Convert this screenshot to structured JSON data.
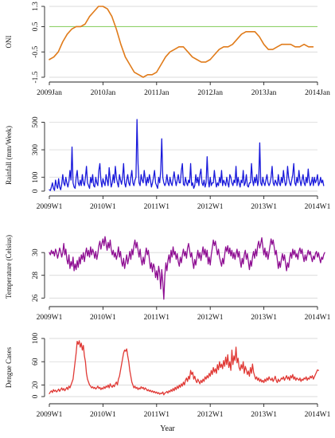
{
  "xlabel": "Year",
  "chart_data": [
    {
      "type": "line",
      "ylabel": "ONI",
      "color": "#e07b1a",
      "ref_line": {
        "value": 0.5,
        "color": "#8fd16a"
      },
      "ylim": [
        -1.5,
        1.3
      ],
      "yticks": [
        "1.3",
        "0.5",
        "-0.5",
        "-1.5"
      ],
      "ytick_values": [
        1.3,
        0.5,
        -0.5,
        -1.5
      ],
      "xlim": [
        0,
        60
      ],
      "xticks": [
        "2009Jan",
        "2010Jan",
        "2011Jan",
        "2012Jan",
        "2013Jan",
        "2014Jan"
      ],
      "xtick_positions": [
        0,
        12,
        24,
        36,
        48,
        60
      ],
      "grid": true,
      "x": [
        0,
        1,
        2,
        3,
        4,
        5,
        6,
        7,
        8,
        9,
        10,
        11,
        12,
        13,
        14,
        15,
        16,
        17,
        18,
        19,
        20,
        21,
        22,
        23,
        24,
        25,
        26,
        27,
        28,
        29,
        30,
        31,
        32,
        33,
        34,
        35,
        36,
        37,
        38,
        39,
        40,
        41,
        42,
        43,
        44,
        45,
        46,
        47,
        48,
        49,
        50,
        51,
        52,
        53,
        54,
        55,
        56,
        57,
        58,
        59
      ],
      "values": [
        -0.8,
        -0.7,
        -0.5,
        -0.1,
        0.2,
        0.4,
        0.5,
        0.5,
        0.6,
        0.9,
        1.1,
        1.3,
        1.3,
        1.2,
        0.9,
        0.4,
        -0.2,
        -0.7,
        -1.0,
        -1.3,
        -1.4,
        -1.5,
        -1.4,
        -1.4,
        -1.3,
        -1.0,
        -0.7,
        -0.5,
        -0.4,
        -0.3,
        -0.3,
        -0.5,
        -0.7,
        -0.8,
        -0.9,
        -0.9,
        -0.8,
        -0.6,
        -0.4,
        -0.3,
        -0.3,
        -0.2,
        0.0,
        0.2,
        0.3,
        0.3,
        0.3,
        0.1,
        -0.2,
        -0.4,
        -0.4,
        -0.3,
        -0.2,
        -0.2,
        -0.2,
        -0.3,
        -0.3,
        -0.2,
        -0.3,
        -0.3
      ]
    },
    {
      "type": "line",
      "ylabel": "Rainfall (mm/Week)",
      "color": "#1a1adb",
      "ylim": [
        0,
        520
      ],
      "yticks": [
        "0",
        "100",
        "300",
        "500"
      ],
      "ytick_values": [
        0,
        100,
        300,
        500
      ],
      "xlim": [
        0,
        260
      ],
      "xticks": [
        "2009W1",
        "2010W1",
        "2011W1",
        "2012W1",
        "2013W1",
        "2014W1"
      ],
      "xtick_positions": [
        0,
        52,
        104,
        156,
        208,
        260
      ],
      "grid": true,
      "values": [
        10,
        5,
        30,
        60,
        20,
        5,
        80,
        40,
        20,
        90,
        30,
        10,
        50,
        120,
        60,
        40,
        100,
        60,
        30,
        70,
        150,
        80,
        320,
        60,
        30,
        20,
        100,
        150,
        60,
        40,
        80,
        40,
        120,
        60,
        40,
        100,
        180,
        60,
        40,
        20,
        100,
        60,
        120,
        40,
        30,
        100,
        60,
        40,
        150,
        200,
        80,
        30,
        90,
        60,
        40,
        120,
        80,
        40,
        170,
        90,
        30,
        60,
        120,
        60,
        180,
        100,
        60,
        30,
        120,
        80,
        50,
        100,
        200,
        60,
        30,
        80,
        120,
        60,
        40,
        100,
        150,
        60,
        40,
        80,
        100,
        520,
        200,
        60,
        40,
        120,
        80,
        60,
        150,
        90,
        40,
        100,
        60,
        120,
        80,
        30,
        60,
        100,
        150,
        60,
        40,
        20,
        100,
        60,
        150,
        380,
        100,
        60,
        40,
        60,
        120,
        60,
        40,
        100,
        60,
        40,
        90,
        140,
        80,
        40,
        80,
        120,
        60,
        60,
        150,
        200,
        50,
        40,
        100,
        60,
        40,
        80,
        60,
        200,
        40,
        60,
        20,
        40,
        120,
        60,
        100,
        40,
        120,
        160,
        60,
        40,
        80,
        30,
        60,
        250,
        80,
        30,
        100,
        40,
        60,
        60,
        150,
        80,
        30,
        60,
        40,
        100,
        60,
        150,
        40,
        80,
        60,
        40,
        100,
        60,
        30,
        120,
        100,
        60,
        40,
        80,
        60,
        180,
        40,
        100,
        60,
        30,
        80,
        60,
        150,
        40,
        60,
        120,
        40,
        30,
        60,
        60,
        200,
        80,
        40,
        100,
        60,
        120,
        40,
        80,
        350,
        60,
        40,
        100,
        60,
        40,
        80,
        120,
        60,
        40,
        60,
        100,
        180,
        60,
        40,
        80,
        60,
        40,
        120,
        60,
        40,
        100,
        60,
        150,
        80,
        40,
        60,
        180,
        100,
        60,
        40,
        80,
        120,
        200,
        60,
        40,
        100,
        60,
        150,
        80,
        40,
        80,
        120,
        60,
        40,
        100,
        60,
        160,
        80,
        40,
        60,
        100,
        40,
        100,
        60,
        80,
        120,
        40,
        60,
        100,
        60,
        80,
        40
      ]
    },
    {
      "type": "line",
      "ylabel": "Temperature (Celsius)",
      "color": "#8e0e92",
      "ylim": [
        25.6,
        31.9
      ],
      "yticks": [
        "26",
        "28",
        "30"
      ],
      "ytick_values": [
        26,
        28,
        30
      ],
      "xlim": [
        0,
        260
      ],
      "xticks": [
        "2009W1",
        "2010W1",
        "2011W1",
        "2012W1",
        "2013W1",
        "2014W1"
      ],
      "xtick_positions": [
        0,
        52,
        104,
        156,
        208,
        260
      ],
      "grid": true,
      "values": [
        30.0,
        29.8,
        30.2,
        29.9,
        30.1,
        29.7,
        30.3,
        30.0,
        29.5,
        29.9,
        30.4,
        30.1,
        29.6,
        30.0,
        30.8,
        29.8,
        30.3,
        29.4,
        29.0,
        29.8,
        28.6,
        29.2,
        28.8,
        29.6,
        28.4,
        29.0,
        28.5,
        29.3,
        28.7,
        29.6,
        29.0,
        29.8,
        29.4,
        30.0,
        29.2,
        29.9,
        30.4,
        29.7,
        30.2,
        29.6,
        30.5,
        29.8,
        30.3,
        30.0,
        29.5,
        30.1,
        29.4,
        29.9,
        30.6,
        31.0,
        30.3,
        30.8,
        31.2,
        30.6,
        31.4,
        30.8,
        30.2,
        30.9,
        30.4,
        31.1,
        30.3,
        29.8,
        30.2,
        29.6,
        30.0,
        29.4,
        29.8,
        30.5,
        29.6,
        30.1,
        29.2,
        28.8,
        29.5,
        28.6,
        29.2,
        29.8,
        29.0,
        29.5,
        30.1,
        29.4,
        30.3,
        29.8,
        30.6,
        31.1,
        30.4,
        30.9,
        30.2,
        29.6,
        30.3,
        29.4,
        28.9,
        29.6,
        29.0,
        29.8,
        30.4,
        29.8,
        30.2,
        29.4,
        28.6,
        29.1,
        28.3,
        29.0,
        28.7,
        27.8,
        28.4,
        27.6,
        28.8,
        28.2,
        26.8,
        28.5,
        27.4,
        25.9,
        28.0,
        29.1,
        28.4,
        29.3,
        29.8,
        29.1,
        30.2,
        29.6,
        30.5,
        29.8,
        30.1,
        29.4,
        29.9,
        29.2,
        28.8,
        29.6,
        29.1,
        29.8,
        30.3,
        29.7,
        30.1,
        29.5,
        30.4,
        30.8,
        30.2,
        29.6,
        30.0,
        29.2,
        28.6,
        29.4,
        28.9,
        29.6,
        30.2,
        29.5,
        30.0,
        29.3,
        29.9,
        30.5,
        29.8,
        30.3,
        29.6,
        30.2,
        29.0,
        29.6,
        28.9,
        29.8,
        30.4,
        31.1,
        30.6,
        31.0,
        30.4,
        29.8,
        30.3,
        29.6,
        29.2,
        28.8,
        29.5,
        29.0,
        29.8,
        30.5,
        30.1,
        30.6,
        29.9,
        30.4,
        29.7,
        30.2,
        29.5,
        30.0,
        29.4,
        29.9,
        30.3,
        29.6,
        30.1,
        29.3,
        28.7,
        29.5,
        29.0,
        29.8,
        30.2,
        29.4,
        29.9,
        29.2,
        28.5,
        29.3,
        28.8,
        29.6,
        30.1,
        29.5,
        30.3,
        29.7,
        30.6,
        31.0,
        30.4,
        30.8,
        31.3,
        30.5,
        29.8,
        30.4,
        29.6,
        30.1,
        29.4,
        30.0,
        30.6,
        31.2,
        30.7,
        31.1,
        30.5,
        29.8,
        30.2,
        29.4,
        28.6,
        29.2,
        28.7,
        29.4,
        29.9,
        29.3,
        29.8,
        29.1,
        28.4,
        29.1,
        28.7,
        29.5,
        30.0,
        29.5,
        30.3,
        29.8,
        30.2,
        29.6,
        29.9,
        29.4,
        30.1,
        30.4,
        29.9,
        30.3,
        29.7,
        29.2,
        29.8,
        29.3,
        29.8,
        30.2,
        29.8,
        30.1,
        29.6,
        29.2,
        29.7,
        29.4,
        29.9,
        30.1,
        29.6,
        30.0,
        29.5,
        29.1,
        29.6,
        29.4,
        29.8,
        30.0
      ]
    },
    {
      "type": "line",
      "ylabel": "Dengue Cases",
      "color": "#e03a36",
      "ylim": [
        0,
        100
      ],
      "yticks": [
        "0",
        "20",
        "60",
        "100"
      ],
      "ytick_values": [
        0,
        20,
        60,
        100
      ],
      "xlim": [
        0,
        260
      ],
      "xticks": [
        "2009W1",
        "2010W1",
        "2011W1",
        "2012W1",
        "2013W1",
        "2014W1"
      ],
      "xtick_positions": [
        0,
        52,
        104,
        156,
        208,
        260
      ],
      "grid": true,
      "values": [
        5,
        8,
        10,
        7,
        12,
        9,
        11,
        8,
        10,
        13,
        9,
        12,
        15,
        11,
        14,
        10,
        13,
        16,
        12,
        18,
        15,
        20,
        25,
        30,
        45,
        60,
        75,
        95,
        90,
        96,
        85,
        92,
        80,
        88,
        70,
        60,
        40,
        30,
        25,
        20,
        18,
        15,
        17,
        14,
        16,
        13,
        15,
        18,
        14,
        16,
        12,
        15,
        13,
        17,
        14,
        18,
        16,
        20,
        15,
        22,
        18,
        16,
        20,
        17,
        22,
        25,
        20,
        30,
        35,
        45,
        55,
        65,
        75,
        80,
        78,
        82,
        70,
        60,
        45,
        35,
        25,
        20,
        15,
        18,
        14,
        16,
        12,
        15,
        13,
        17,
        14,
        16,
        12,
        15,
        13,
        10,
        12,
        9,
        11,
        8,
        10,
        7,
        9,
        6,
        8,
        5,
        7,
        4,
        6,
        5,
        8,
        3,
        6,
        7,
        9,
        6,
        10,
        8,
        12,
        9,
        14,
        10,
        16,
        12,
        18,
        14,
        20,
        16,
        22,
        18,
        25,
        20,
        28,
        32,
        26,
        35,
        30,
        45,
        38,
        42,
        30,
        35,
        28,
        24,
        30,
        26,
        22,
        28,
        24,
        30,
        26,
        34,
        30,
        36,
        32,
        40,
        35,
        45,
        38,
        50,
        42,
        48,
        40,
        55,
        46,
        60,
        50,
        56,
        48,
        62,
        52,
        68,
        55,
        72,
        50,
        60,
        45,
        80,
        55,
        70,
        62,
        85,
        58,
        66,
        50,
        45,
        55,
        48,
        60,
        40,
        52,
        46,
        38,
        44,
        35,
        50,
        40,
        56,
        42,
        36,
        30,
        34,
        28,
        32,
        26,
        30,
        25,
        28,
        24,
        30,
        26,
        32,
        28,
        34,
        30,
        28,
        32,
        26,
        30,
        35,
        28,
        24,
        30,
        26,
        28,
        32,
        30,
        34,
        28,
        32,
        36,
        30,
        34,
        28,
        36,
        32,
        38,
        30,
        34,
        28,
        32,
        30,
        28,
        32,
        26,
        30,
        28,
        32,
        30,
        34,
        28,
        32,
        30,
        35,
        32,
        36,
        30,
        34,
        38,
        42,
        46,
        45
      ]
    }
  ],
  "charts_meta": {
    "x_tick_labels_time": [
      "2009Jan",
      "2010Jan",
      "2011Jan",
      "2012Jan",
      "2013Jan",
      "2014Jan"
    ],
    "x_tick_labels_week": [
      "2009W1",
      "2010W1",
      "2011W1",
      "2012W1",
      "2013W1",
      "2014W1"
    ]
  }
}
